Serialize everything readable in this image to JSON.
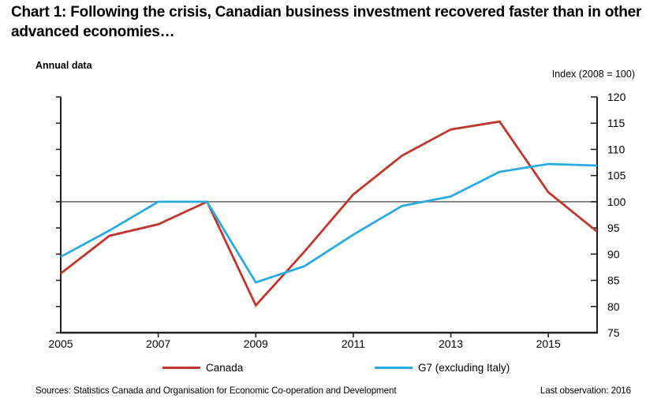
{
  "page": {
    "title": "Chart 1: Following the crisis, Canadian business investment recovered faster than in other advanced economies…",
    "annual_data_label": "Annual data",
    "index_note": "Index (2008 = 100)",
    "sources": "Sources: Statistics Canada and Organisation for Economic Co-operation and Development",
    "last_observation": "Last observation: 2016"
  },
  "colors": {
    "canada": "#c1362c",
    "g7": "#29abe2",
    "reference_line": "#7a7a7a",
    "axis": "#231f20",
    "text": "#000000"
  },
  "chart_data": {
    "type": "line",
    "x": [
      2005,
      2006,
      2007,
      2008,
      2009,
      2010,
      2011,
      2012,
      2013,
      2014,
      2015,
      2016
    ],
    "series": [
      {
        "name": "Canada",
        "color_key": "canada",
        "values": [
          86.3,
          93.5,
          95.7,
          100,
          80.2,
          90.5,
          101.4,
          108.8,
          113.8,
          115.3,
          101.8,
          94.3
        ]
      },
      {
        "name": "G7 (excluding Italy)",
        "color_key": "g7",
        "values": [
          89.5,
          94.5,
          100,
          100,
          84.6,
          87.7,
          93.7,
          99.2,
          101,
          105.7,
          107.2,
          106.9
        ]
      }
    ],
    "ylim": [
      75,
      120
    ],
    "yticks": [
      75,
      80,
      85,
      90,
      95,
      100,
      105,
      110,
      115,
      120
    ],
    "xticks": [
      2005,
      2007,
      2009,
      2011,
      2013,
      2015
    ],
    "reference_y": 100,
    "grid": false,
    "legend_position": "bottom",
    "ytick_label_side": "right",
    "base_year_note": "2008 = 100"
  }
}
